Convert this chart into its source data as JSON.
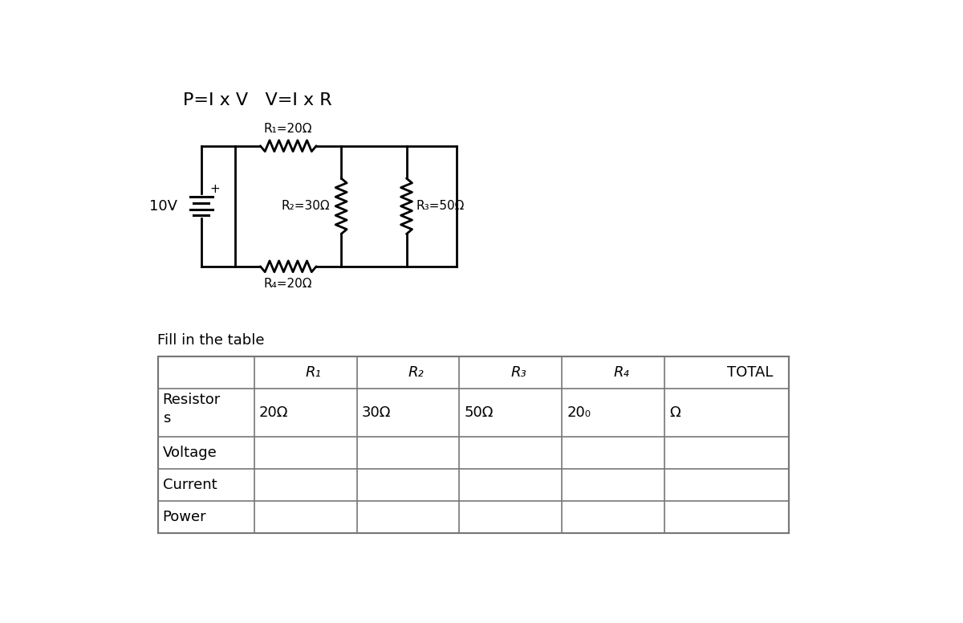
{
  "title_formula": "P=I x V   V=I x R",
  "voltage_label": "10V",
  "r1_label": "R₁=20Ω",
  "r2_label": "R₂=30Ω",
  "r3_label": "R₃=50Ω",
  "r4_label": "R₄=20Ω",
  "fill_in_label": "Fill in the table",
  "table_headers": [
    "",
    "R₁",
    "R₂",
    "R₃",
    "R₄",
    "TOTAL"
  ],
  "table_row1_vals": [
    "20Ω",
    "30Ω",
    "50Ω",
    "20₀",
    "Ω"
  ],
  "bg_color": "#ffffff",
  "circuit_color": "#000000"
}
